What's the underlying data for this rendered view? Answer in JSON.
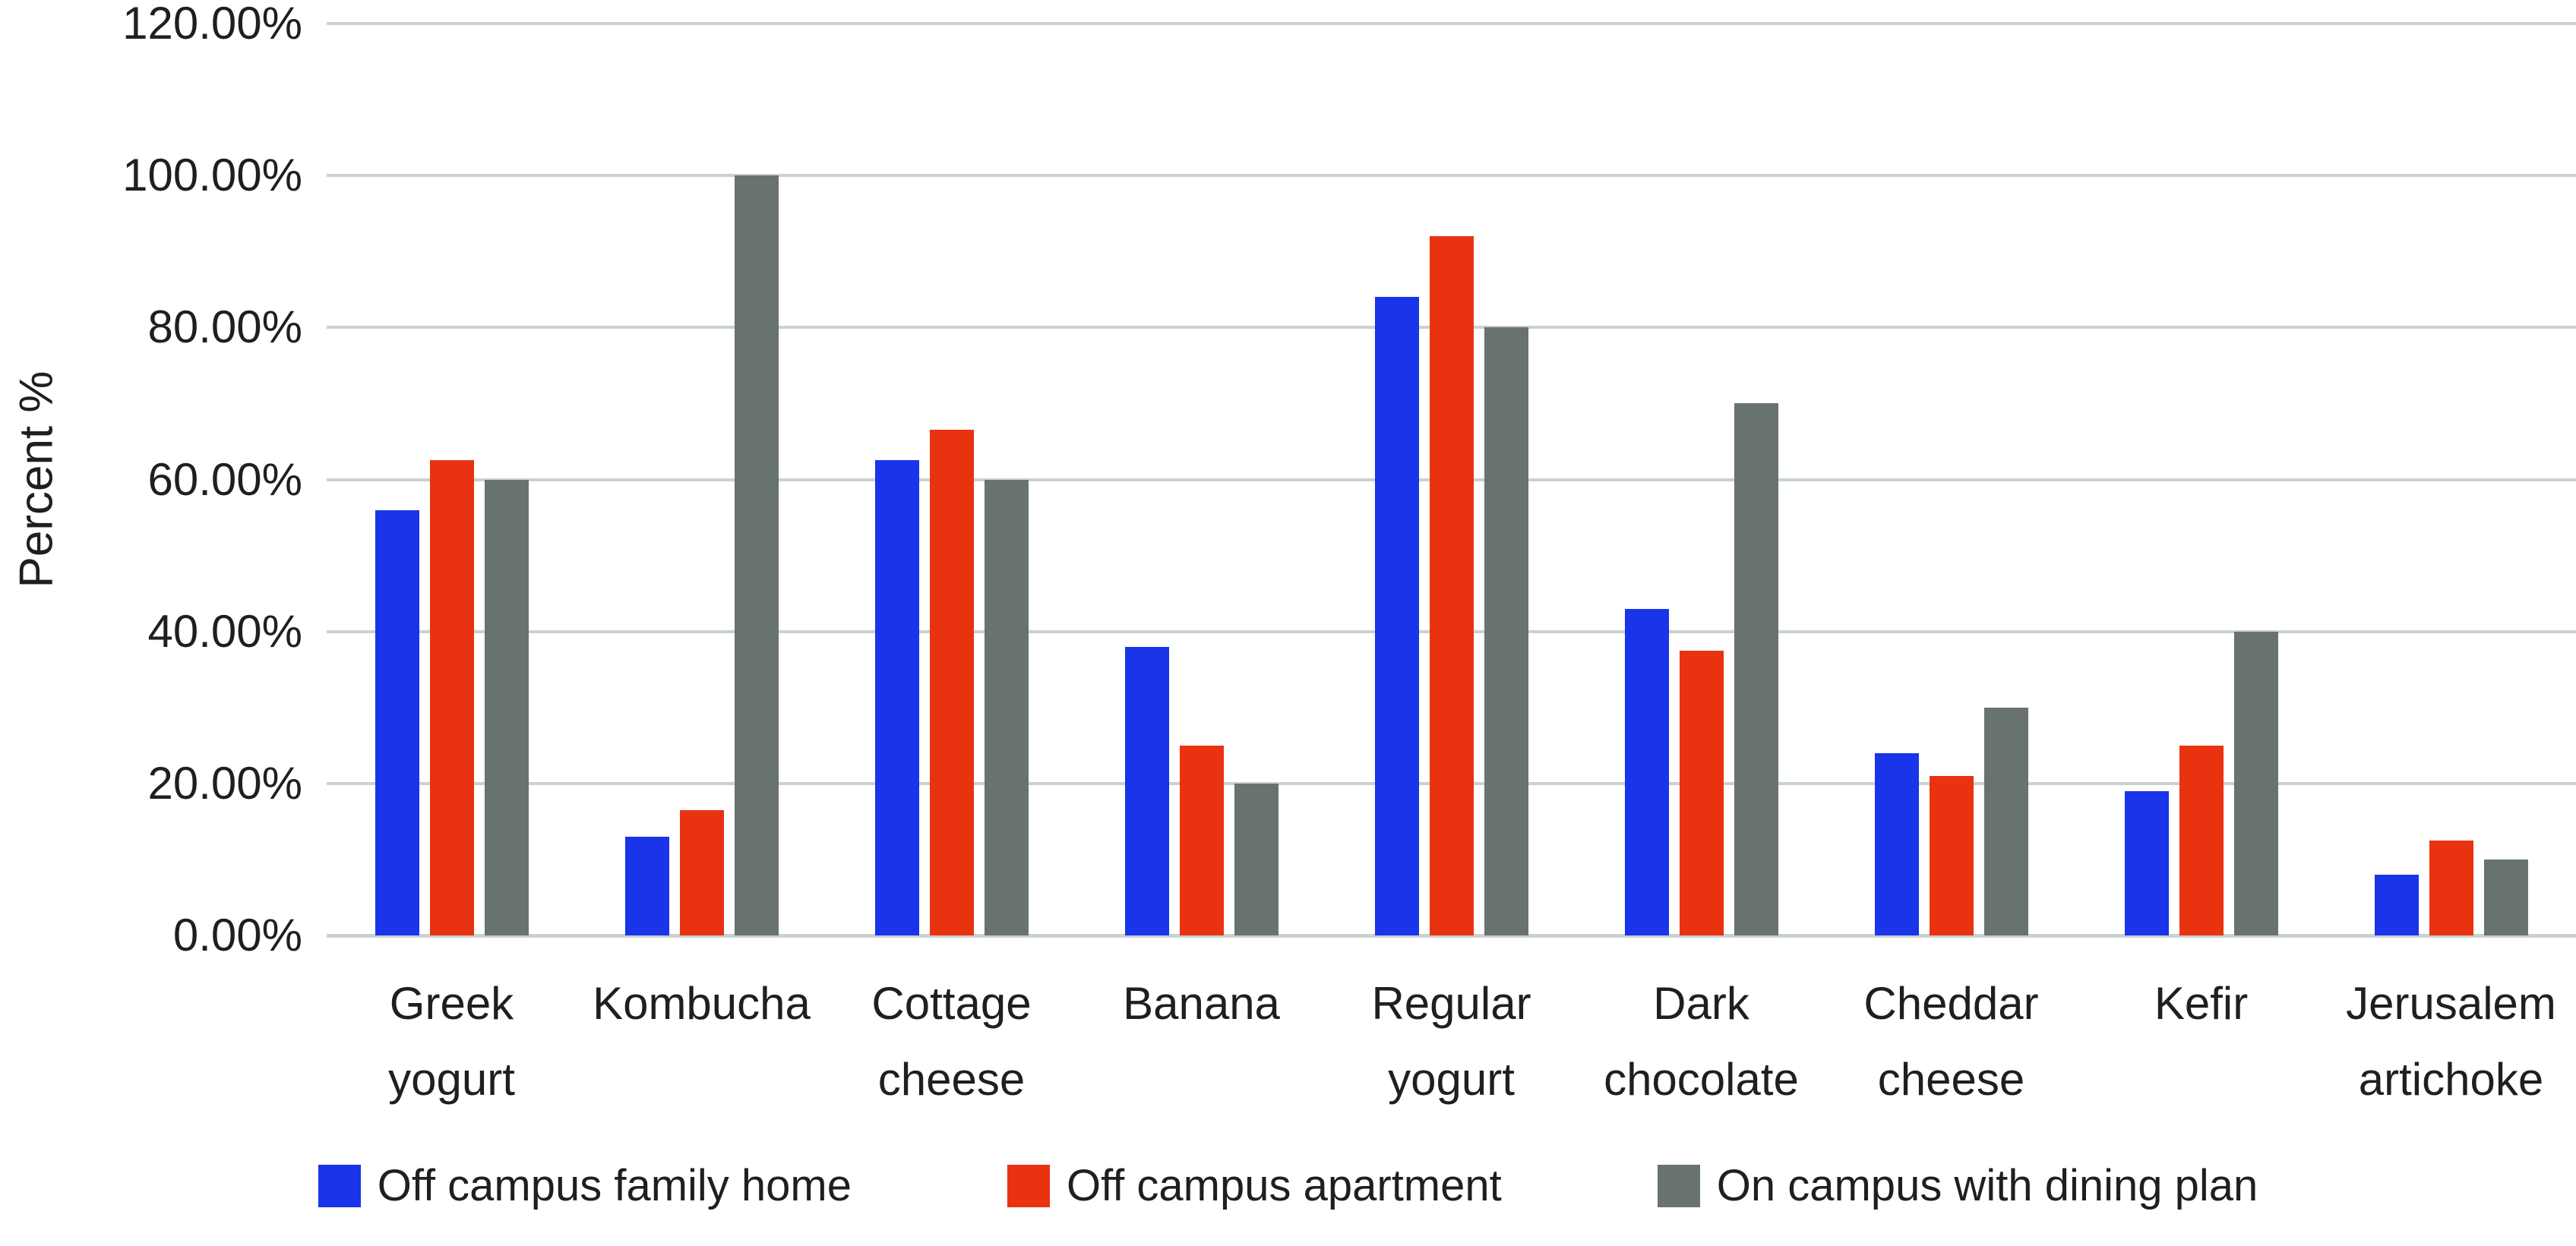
{
  "chart_data": {
    "type": "bar",
    "title": "",
    "xlabel": "",
    "ylabel": "Percent %",
    "ylim": [
      0,
      120
    ],
    "ytick_step": 20,
    "yticks": [
      "0.00%",
      "20.00%",
      "40.00%",
      "60.00%",
      "80.00%",
      "100.00%",
      "120.00%"
    ],
    "grid": true,
    "gridline_color": "#c9d2d0",
    "background_color": "#ffffff",
    "legend_position": "bottom",
    "categories": [
      "Greek yogurt",
      "Kombucha",
      "Cottage cheese",
      "Banana",
      "Regular yogurt",
      "Dark chocolate",
      "Cheddar cheese",
      "Kefir",
      "Jerusalem artichoke"
    ],
    "series": [
      {
        "name": "Off campus family home",
        "color": "#1a34e9",
        "values": [
          56,
          13,
          62.5,
          38,
          84,
          43,
          24,
          19,
          8
        ]
      },
      {
        "name": "Off campus apartment",
        "color": "#e93210",
        "values": [
          62.5,
          16.5,
          66.5,
          25,
          92,
          37.5,
          21,
          25,
          12.5
        ]
      },
      {
        "name": "On campus with dining plan",
        "color": "#687271",
        "values": [
          60,
          100,
          60,
          20,
          80,
          70,
          30,
          40,
          10
        ]
      }
    ]
  }
}
